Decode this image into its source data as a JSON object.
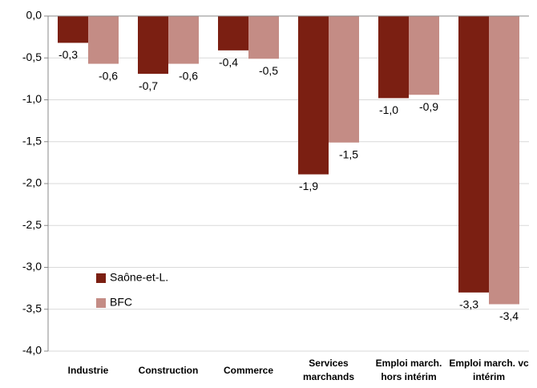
{
  "chart_data": {
    "type": "bar",
    "categories": [
      "Industrie",
      "Construction",
      "Commerce",
      "Services marchands",
      "Emploi march. hors intérim",
      "Emploi march. vc intérim"
    ],
    "series": [
      {
        "name": "Saône-et-L.",
        "color": "#7b1f12",
        "values": [
          -0.32,
          -0.69,
          -0.41,
          -1.89,
          -0.98,
          -3.3
        ],
        "value_labels": [
          "-0,3",
          "-0,7",
          "-0,4",
          "-1,9",
          "-1,0",
          "-3,3"
        ]
      },
      {
        "name": "BFC",
        "color": "#c48c85",
        "values": [
          -0.57,
          -0.57,
          -0.51,
          -1.51,
          -0.94,
          -3.44
        ],
        "value_labels": [
          "-0,6",
          "-0,6",
          "-0,5",
          "-1,5",
          "-0,9",
          "-3,4"
        ]
      }
    ],
    "ylim": [
      -4,
      0
    ],
    "yticks": [
      {
        "value": 0,
        "label": "0,0"
      },
      {
        "value": -0.5,
        "label": "-0,5"
      },
      {
        "value": -1,
        "label": "-1,0"
      },
      {
        "value": -1.5,
        "label": "-1,5"
      },
      {
        "value": -2,
        "label": "-2,0"
      },
      {
        "value": -2.5,
        "label": "-2,5"
      },
      {
        "value": -3,
        "label": "-3,0"
      },
      {
        "value": -3.5,
        "label": "-3,5"
      },
      {
        "value": -4,
        "label": "-4,0"
      }
    ],
    "grid": true
  }
}
